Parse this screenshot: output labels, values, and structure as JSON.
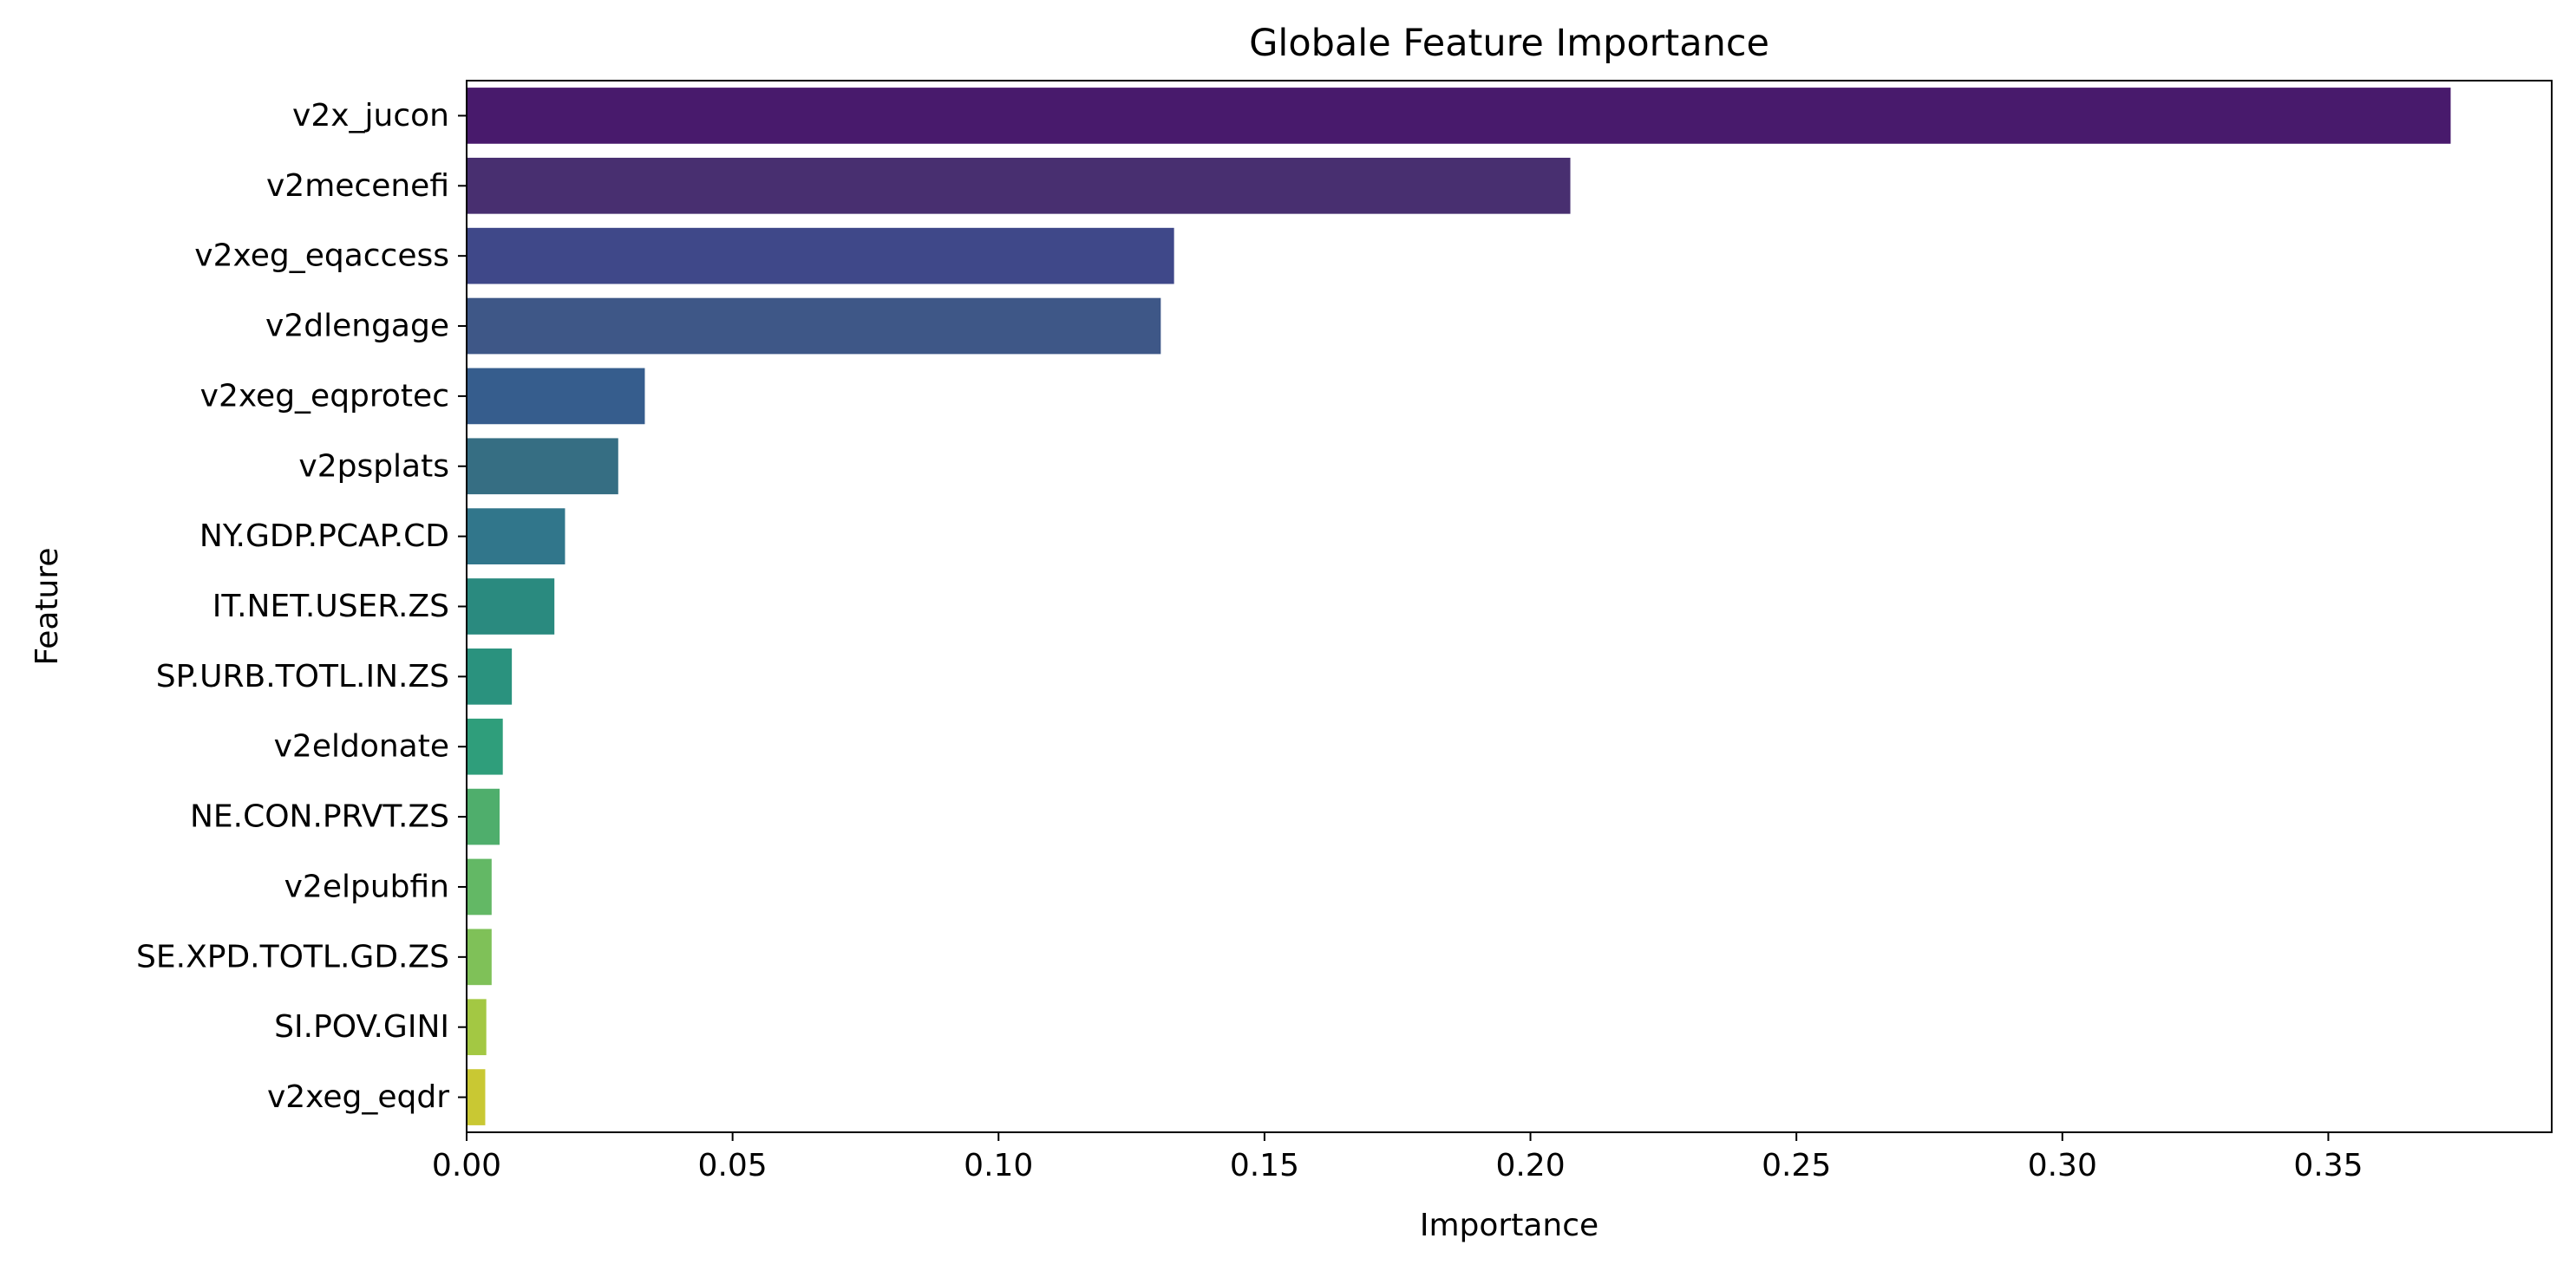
{
  "chart_data": {
    "type": "bar",
    "orientation": "horizontal",
    "title": "Globale Feature Importance",
    "xlabel": "Importance",
    "ylabel": "Feature",
    "xlim": [
      0,
      0.392
    ],
    "xticks": [
      0.0,
      0.05,
      0.1,
      0.15,
      0.2,
      0.25,
      0.3,
      0.35
    ],
    "xtick_labels": [
      "0.00",
      "0.05",
      "0.10",
      "0.15",
      "0.20",
      "0.25",
      "0.30",
      "0.35"
    ],
    "grid": false,
    "legend": "none",
    "categories": [
      "v2x_jucon",
      "v2mecenefi",
      "v2xeg_eqaccess",
      "v2dlengage",
      "v2xeg_eqprotec",
      "v2psplats",
      "NY.GDP.PCAP.CD",
      "IT.NET.USER.ZS",
      "SP.URB.TOTL.IN.ZS",
      "v2eldonate",
      "NE.CON.PRVT.ZS",
      "v2elpubfin",
      "SE.XPD.TOTL.GD.ZS",
      "SI.POV.GINI",
      "v2xeg_eqdr"
    ],
    "values": [
      0.373,
      0.2075,
      0.133,
      0.1305,
      0.0335,
      0.0285,
      0.0185,
      0.0165,
      0.0085,
      0.0068,
      0.0062,
      0.0047,
      0.0047,
      0.0037,
      0.0035
    ],
    "colors": [
      "#481a6c",
      "#482f70",
      "#3f4889",
      "#3e5787",
      "#365d8d",
      "#366e83",
      "#31768b",
      "#2a8a7f",
      "#2a927e",
      "#2f9e7b",
      "#4fae6c",
      "#63b865",
      "#7fc158",
      "#a3c843",
      "#c9c833"
    ]
  }
}
